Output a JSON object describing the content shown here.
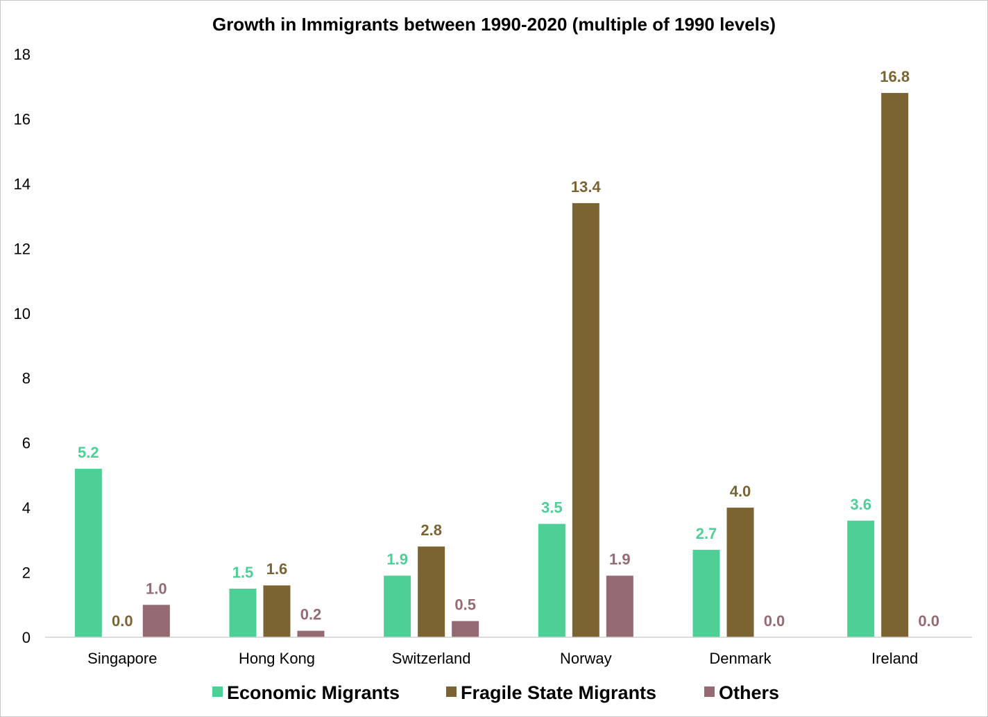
{
  "chart_data": {
    "type": "bar",
    "title": "Growth in Immigrants between 1990-2020 (multiple of 1990 levels)",
    "xlabel": "",
    "ylabel": "",
    "ylim": [
      0,
      18
    ],
    "yticks": [
      "0",
      "2",
      "4",
      "6",
      "8",
      "10",
      "12",
      "14",
      "16",
      "18"
    ],
    "grid": false,
    "legend_position": "bottom",
    "categories": [
      "Singapore",
      "Hong Kong",
      "Switzerland",
      "Norway",
      "Denmark",
      "Ireland"
    ],
    "series": [
      {
        "name": "Economic Migrants",
        "color": "#4ecf96",
        "values": [
          5.2,
          1.5,
          1.9,
          3.5,
          2.7,
          3.6
        ],
        "labels": [
          "5.2",
          "1.5",
          "1.9",
          "3.5",
          "2.7",
          "3.6"
        ]
      },
      {
        "name": "Fragile State Migrants",
        "color": "#7b6432",
        "values": [
          0.0,
          1.6,
          2.8,
          13.4,
          4.0,
          16.8
        ],
        "labels": [
          "0.0",
          "1.6",
          "2.8",
          "13.4",
          "4.0",
          "16.8"
        ]
      },
      {
        "name": "Others",
        "color": "#956a72",
        "values": [
          1.0,
          0.2,
          0.5,
          1.9,
          0.0,
          0.0
        ],
        "labels": [
          "1.0",
          "0.2",
          "0.5",
          "1.9",
          "0.0",
          "0.0"
        ]
      }
    ]
  }
}
